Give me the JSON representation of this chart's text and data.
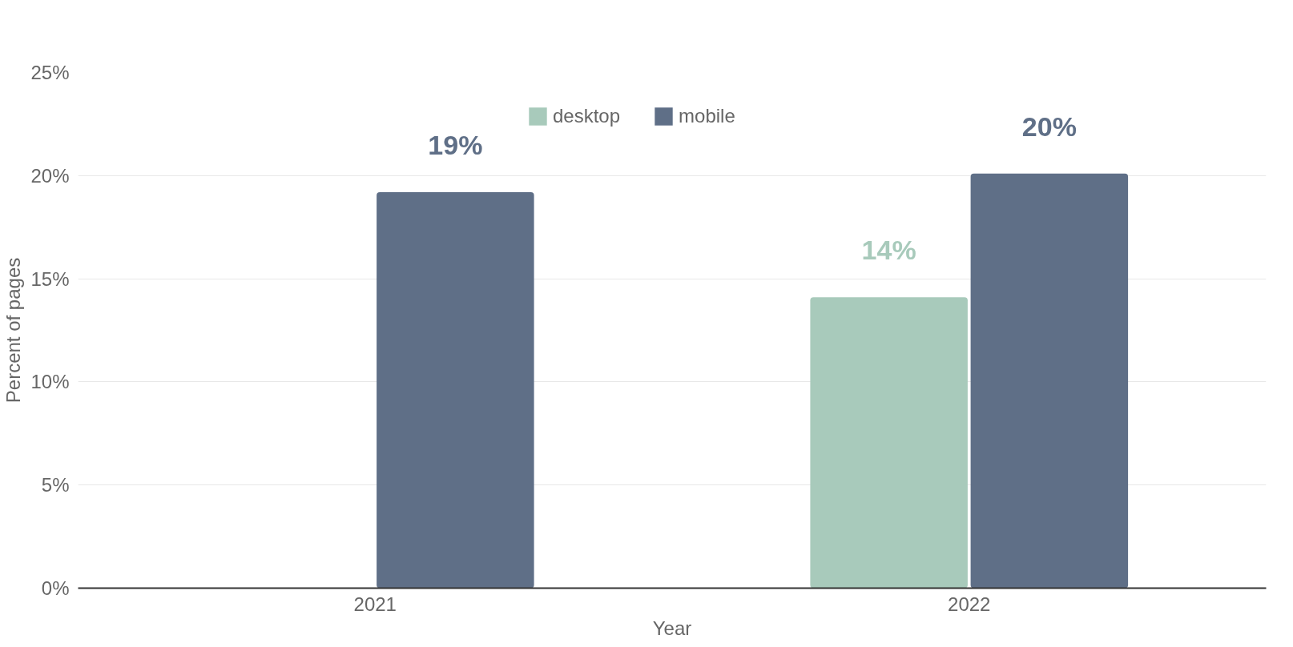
{
  "chart_data": {
    "type": "bar",
    "categories": [
      "2021",
      "2022"
    ],
    "xlabel": "Year",
    "ylabel": "Percent of pages",
    "series": [
      {
        "name": "desktop",
        "color": "#a8cabb",
        "values": [
          null,
          14.1
        ],
        "value_labels": [
          null,
          "14%"
        ]
      },
      {
        "name": "mobile",
        "color": "#5f6f87",
        "values": [
          19.2,
          20.1
        ],
        "value_labels": [
          "19%",
          "20%"
        ]
      }
    ],
    "ylim": [
      0,
      25
    ],
    "yticks": [
      {
        "value": 0,
        "label": "0%"
      },
      {
        "value": 5,
        "label": "5%"
      },
      {
        "value": 10,
        "label": "10%"
      },
      {
        "value": 15,
        "label": "15%"
      },
      {
        "value": 20,
        "label": "20%"
      },
      {
        "value": 25,
        "label": "25%"
      }
    ],
    "grid": "y",
    "legend": "top"
  }
}
